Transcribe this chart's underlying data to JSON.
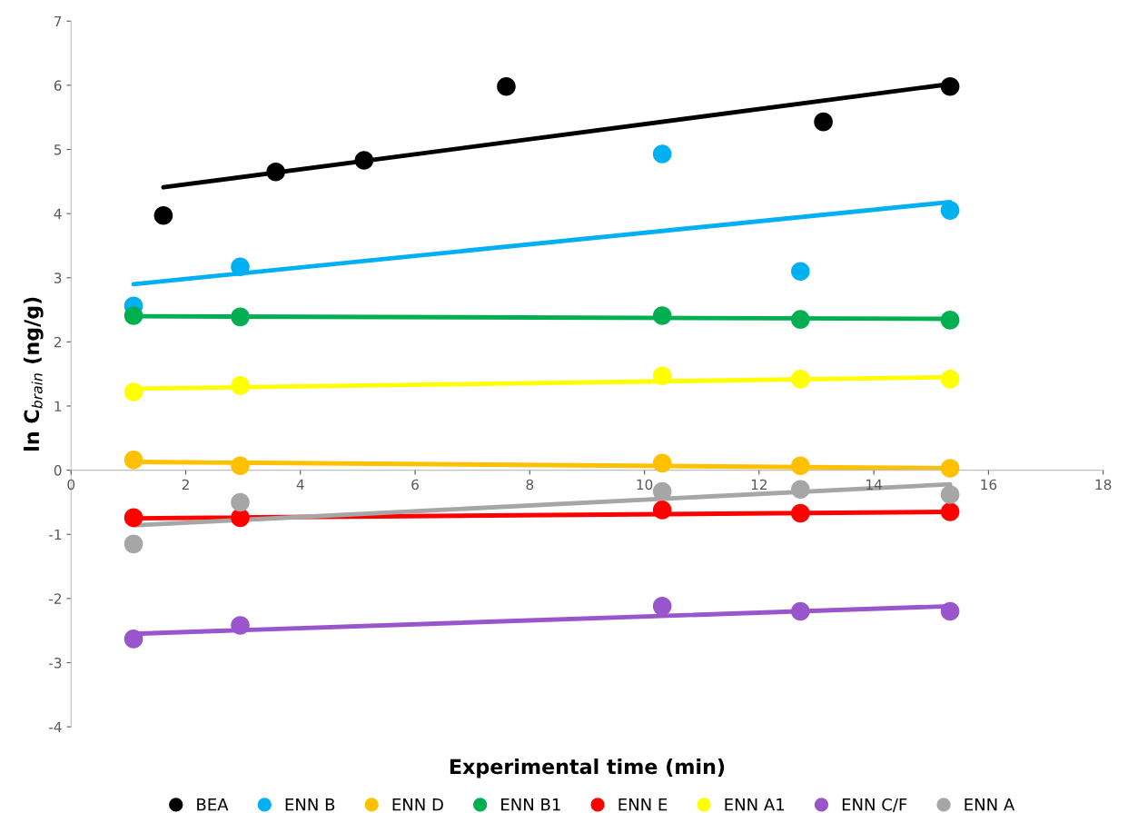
{
  "chart_data": {
    "type": "scatter",
    "xlabel": "Experimental time (min)",
    "ylabel": "ln C$_{brain}$ (ng/g)",
    "xlim": [
      0,
      18
    ],
    "ylim": [
      -4,
      7
    ],
    "xticks": [
      0,
      2,
      4,
      6,
      8,
      10,
      12,
      14,
      16,
      18
    ],
    "yticks": [
      -4,
      -3,
      -2,
      -1,
      0,
      1,
      2,
      3,
      4,
      5,
      6,
      7
    ],
    "grid": false,
    "legend": "bottom",
    "marker": "circle",
    "series": [
      {
        "name": "BEA",
        "color": "#000000",
        "x": [
          1.61,
          3.57,
          5.11,
          7.59,
          13.12,
          15.33
        ],
        "values": [
          3.97,
          4.65,
          4.83,
          5.98,
          5.43,
          5.98
        ]
      },
      {
        "name": "ENN B",
        "color": "#00b0f0",
        "x": [
          1.09,
          2.95,
          10.31,
          12.72,
          15.33
        ],
        "values": [
          2.56,
          3.17,
          4.93,
          3.1,
          4.05
        ]
      },
      {
        "name": "ENN D",
        "color": "#ffc000",
        "x": [
          1.09,
          2.95,
          10.31,
          12.72,
          15.33
        ],
        "values": [
          0.16,
          0.07,
          0.11,
          0.07,
          0.03
        ]
      },
      {
        "name": "ENN B1",
        "color": "#00b050",
        "x": [
          1.09,
          2.95,
          10.31,
          12.72,
          15.33
        ],
        "values": [
          2.41,
          2.39,
          2.41,
          2.35,
          2.34
        ]
      },
      {
        "name": "ENN E",
        "color": "#ff0000",
        "x": [
          1.09,
          2.95,
          10.31,
          12.72,
          15.33
        ],
        "values": [
          -0.74,
          -0.74,
          -0.62,
          -0.67,
          -0.65
        ]
      },
      {
        "name": "ENN A1",
        "color": "#ffff00",
        "x": [
          1.09,
          2.95,
          10.31,
          12.72,
          15.33
        ],
        "values": [
          1.22,
          1.32,
          1.47,
          1.42,
          1.42
        ]
      },
      {
        "name": "ENN C/F",
        "color": "#9955cc",
        "x": [
          1.09,
          2.95,
          10.31,
          12.72,
          15.33
        ],
        "values": [
          -2.63,
          -2.42,
          -2.12,
          -2.2,
          -2.2
        ]
      },
      {
        "name": "ENN A",
        "color": "#a6a6a6",
        "x": [
          1.09,
          2.95,
          10.31,
          12.72,
          15.33
        ],
        "values": [
          -1.15,
          -0.5,
          -0.33,
          -0.3,
          -0.38
        ]
      },
      {
        "type": "line",
        "marker": "none",
        "color": "#000000",
        "x": [
          1.61,
          15.33
        ],
        "values": [
          4.41,
          6.02
        ]
      },
      {
        "type": "line",
        "marker": "none",
        "color": "#00b0f0",
        "x": [
          1.09,
          15.33
        ],
        "values": [
          2.9,
          4.18
        ]
      },
      {
        "type": "line",
        "marker": "none",
        "color": "#ffc000",
        "x": [
          1.09,
          15.33
        ],
        "values": [
          0.13,
          0.03
        ]
      },
      {
        "type": "line",
        "marker": "none",
        "color": "#00b050",
        "x": [
          1.09,
          15.33
        ],
        "values": [
          2.4,
          2.36
        ]
      },
      {
        "type": "line",
        "marker": "none",
        "color": "#ff0000",
        "x": [
          1.09,
          15.33
        ],
        "values": [
          -0.75,
          -0.65
        ]
      },
      {
        "type": "line",
        "marker": "none",
        "color": "#ffff00",
        "x": [
          1.09,
          15.33
        ],
        "values": [
          1.27,
          1.45
        ]
      },
      {
        "type": "line",
        "marker": "none",
        "color": "#9955cc",
        "x": [
          1.09,
          15.33
        ],
        "values": [
          -2.55,
          -2.12
        ]
      },
      {
        "type": "line",
        "marker": "none",
        "color": "#a6a6a6",
        "x": [
          1.09,
          15.33
        ],
        "values": [
          -0.86,
          -0.22
        ]
      }
    ]
  }
}
